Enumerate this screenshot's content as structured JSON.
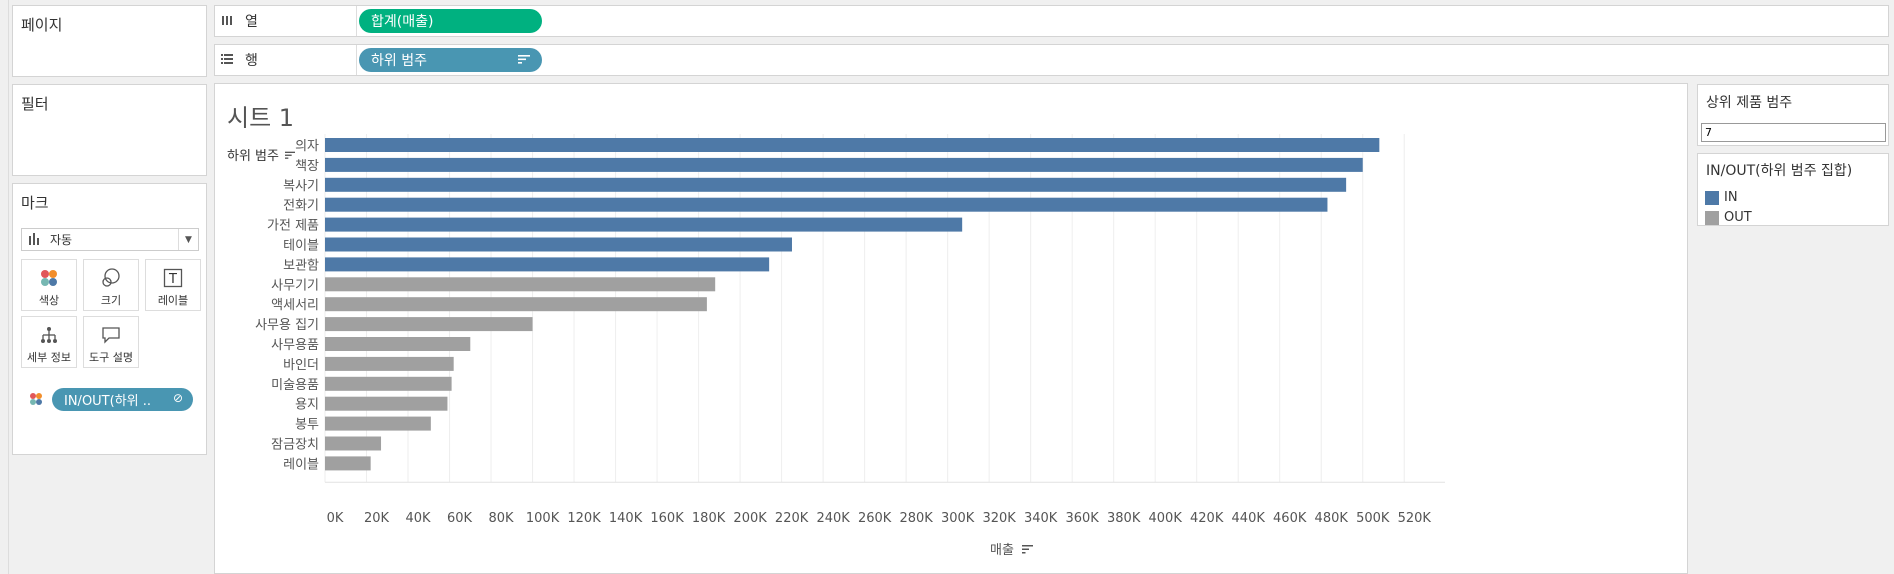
{
  "left_panel": {
    "pages_title": "페이지",
    "filters_title": "필터",
    "marks": {
      "title": "마크",
      "mark_type": "자동",
      "buttons": [
        {
          "label": "색상",
          "icon": "color-dots-icon"
        },
        {
          "label": "크기",
          "icon": "size-circles-icon"
        },
        {
          "label": "레이블",
          "icon": "label-t-icon"
        },
        {
          "label": "세부 정보",
          "icon": "detail-tree-icon"
        },
        {
          "label": "도구 설명",
          "icon": "tooltip-bubble-icon"
        }
      ],
      "color_pill": "IN/OUT(하위 .."
    }
  },
  "shelves": {
    "columns": {
      "label": "열",
      "pill": "합계(매출)"
    },
    "rows": {
      "label": "행",
      "pill": "하위 범주"
    }
  },
  "sheet": {
    "title": "시트 1",
    "row_header": "하위 범주"
  },
  "chart_data": {
    "type": "bar",
    "orientation": "horizontal",
    "categories": [
      "의자",
      "책장",
      "복사기",
      "전화기",
      "가전 제품",
      "테이블",
      "보관함",
      "사무기기",
      "액세서리",
      "사무용 집기",
      "사무용품",
      "바인더",
      "미술용품",
      "용지",
      "봉투",
      "잠금장치",
      "레이블"
    ],
    "values": [
      508000,
      500000,
      492000,
      483000,
      307000,
      225000,
      214000,
      188000,
      184000,
      100000,
      70000,
      62000,
      61000,
      59000,
      51000,
      27000,
      22000
    ],
    "set_membership": [
      "IN",
      "IN",
      "IN",
      "IN",
      "IN",
      "IN",
      "IN",
      "OUT",
      "OUT",
      "OUT",
      "OUT",
      "OUT",
      "OUT",
      "OUT",
      "OUT",
      "OUT",
      "OUT"
    ],
    "colors": {
      "IN": "#4e79a7",
      "OUT": "#a0a0a0"
    },
    "xlim": [
      0,
      530000
    ],
    "x_ticks": [
      "0K",
      "20K",
      "40K",
      "60K",
      "80K",
      "100K",
      "120K",
      "140K",
      "160K",
      "180K",
      "200K",
      "220K",
      "240K",
      "260K",
      "280K",
      "300K",
      "320K",
      "340K",
      "360K",
      "380K",
      "400K",
      "420K",
      "440K",
      "460K",
      "480K",
      "500K",
      "520K"
    ],
    "xlabel": "매출",
    "grid": true
  },
  "parameter": {
    "title": "상위 제품 범주",
    "value": "7"
  },
  "legend": {
    "title": "IN/OUT(하위 범주 집합)",
    "items": [
      {
        "label": "IN",
        "color": "#4e79a7"
      },
      {
        "label": "OUT",
        "color": "#a0a0a0"
      }
    ]
  }
}
